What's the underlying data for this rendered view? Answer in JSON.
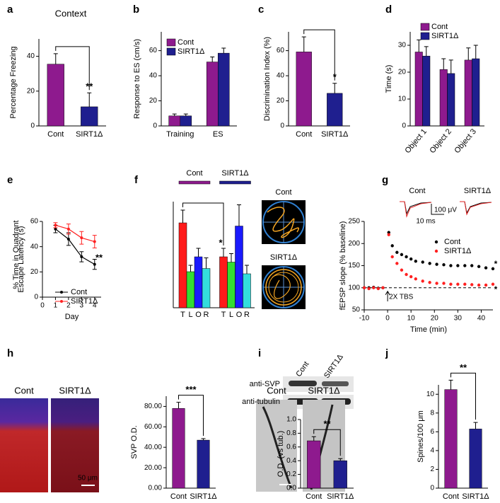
{
  "chart_data": [
    {
      "panel": "a",
      "type": "bar",
      "title": "Context",
      "ylabel": "Percentage Freezing",
      "categories": [
        "Cont",
        "SIRT1Δ"
      ],
      "values": [
        35.5,
        11
      ],
      "errors": [
        6,
        8
      ],
      "colors": [
        "#8e1a8e",
        "#1f1f8f"
      ],
      "ylim": [
        0,
        50
      ],
      "yticks": [
        0,
        20,
        40
      ],
      "significance": "**"
    },
    {
      "panel": "b",
      "type": "bar",
      "ylabel": "Response to ES (cm/s)",
      "categories": [
        "Training",
        "ES"
      ],
      "series": [
        {
          "name": "Cont",
          "color": "#8e1a8e",
          "values": [
            8,
            51
          ],
          "errors": [
            1.5,
            4
          ]
        },
        {
          "name": "SIRT1Δ",
          "color": "#1f1f8f",
          "values": [
            8,
            58
          ],
          "errors": [
            1.5,
            4
          ]
        }
      ],
      "ylim": [
        0,
        75
      ],
      "yticks": [
        0,
        20,
        40,
        60
      ],
      "legend": "top-left"
    },
    {
      "panel": "c",
      "type": "bar",
      "ylabel": "Discrimination Index (%)",
      "categories": [
        "Cont",
        "SIRT1Δ"
      ],
      "values": [
        59,
        26
      ],
      "errors": [
        12,
        8
      ],
      "colors": [
        "#8e1a8e",
        "#1f1f8f"
      ],
      "ylim": [
        0,
        75
      ],
      "yticks": [
        0,
        20,
        40,
        60
      ],
      "significance": "*"
    },
    {
      "panel": "d",
      "type": "bar",
      "ylabel": "Time (s)",
      "categories": [
        "Object 1",
        "Object 2",
        "Object 3"
      ],
      "series": [
        {
          "name": "Cont",
          "color": "#8e1a8e",
          "values": [
            27.5,
            21,
            24.5
          ],
          "errors": [
            4.5,
            4,
            4.5
          ]
        },
        {
          "name": "SIRT1Δ",
          "color": "#1f1f8f",
          "values": [
            26,
            19.5,
            25
          ],
          "errors": [
            3.5,
            5,
            5
          ]
        }
      ],
      "ylim": [
        0,
        35
      ],
      "yticks": [
        0,
        10,
        20,
        30
      ],
      "legend": "top-right"
    },
    {
      "panel": "e",
      "type": "line",
      "ylabel": "Escape Latency (s)",
      "xlabel": "Day",
      "x": [
        1,
        2,
        3,
        4
      ],
      "series": [
        {
          "name": "Cont",
          "color": "#000000",
          "values": [
            54,
            46,
            32,
            26
          ],
          "errors": [
            3,
            5,
            4,
            4
          ]
        },
        {
          "name": "SIRT1Δ",
          "color": "#ff2020",
          "values": [
            57,
            54,
            47,
            44
          ],
          "errors": [
            2,
            4,
            5,
            5
          ]
        }
      ],
      "xlim": [
        0,
        4.5
      ],
      "xticks": [
        0,
        1,
        2,
        3,
        4
      ],
      "ylim": [
        0,
        60
      ],
      "yticks": [
        0,
        20,
        40,
        60
      ],
      "legend": "bottom-right",
      "significance": "**"
    },
    {
      "panel": "f",
      "type": "quadrant",
      "ylabel": "% Time in Quadrant",
      "categories": [
        "T",
        "L",
        "O",
        "R"
      ],
      "category_colors": [
        "#ff1a1a",
        "#33dd33",
        "#1a1aff",
        "#33dddd"
      ],
      "groups": [
        {
          "name": "Cont",
          "color": "#8e1a8e",
          "values": [
            40,
            17,
            24,
            18.5
          ],
          "errors": [
            6,
            3,
            4,
            5
          ]
        },
        {
          "name": "SIRT1Δ",
          "color": "#1f1f8f",
          "values": [
            24,
            21.5,
            38.5,
            16
          ],
          "errors": [
            4,
            4,
            10,
            4
          ]
        }
      ],
      "ylim": [
        0,
        50
      ],
      "significance": "*",
      "maze_labels": [
        "Cont",
        "SIRT1Δ"
      ]
    },
    {
      "panel": "g",
      "type": "scatter",
      "ylabel": "fEPSP slope (% baseline)",
      "xlabel": "Time (min)",
      "x": [
        -10,
        -8,
        -6,
        -4,
        -2,
        0.5,
        2,
        4,
        6,
        8,
        10,
        12,
        15,
        18,
        21,
        24,
        27,
        30,
        33,
        36,
        39,
        42,
        45
      ],
      "series": [
        {
          "name": "Cont",
          "color": "#000000",
          "significance": "*",
          "values": [
            100,
            100,
            101,
            99,
            100,
            225,
            195,
            180,
            175,
            170,
            165,
            160,
            158,
            155,
            153,
            152,
            150,
            150,
            150,
            150,
            148,
            145,
            143
          ]
        },
        {
          "name": "SIRT1Δ",
          "color": "#ff2020",
          "significance": "*",
          "values": [
            100,
            98,
            100,
            98,
            100,
            220,
            170,
            155,
            140,
            130,
            125,
            120,
            115,
            112,
            110,
            110,
            108,
            108,
            108,
            107,
            106,
            106,
            108
          ]
        }
      ],
      "xlim": [
        -10,
        45
      ],
      "xticks": [
        -10,
        0,
        10,
        20,
        30,
        40
      ],
      "ylim": [
        50,
        250
      ],
      "yticks": [
        50,
        100,
        150,
        200,
        250
      ],
      "reference_line": 100,
      "arrow_label": "2X TBS",
      "legend": "top-right",
      "trace_labels": [
        "Cont",
        "SIRT1Δ"
      ],
      "scale_labels": [
        "100 μV",
        "10 ms"
      ]
    },
    {
      "panel": "h",
      "type": "bar",
      "ylabel": "SVP O.D.",
      "categories": [
        "Cont",
        "SIRT1Δ"
      ],
      "values": [
        78,
        47
      ],
      "errors": [
        6,
        1.5
      ],
      "colors": [
        "#8e1a8e",
        "#1f1f8f"
      ],
      "ylim": [
        0,
        90
      ],
      "yticks": [
        {
          "value": 0,
          "label": "0.00"
        },
        {
          "value": 20,
          "label": "20.00"
        },
        {
          "value": 40,
          "label": "40.00"
        },
        {
          "value": 60,
          "label": "60.00"
        },
        {
          "value": 80,
          "label": "80.00"
        }
      ],
      "significance": "***",
      "image_labels": [
        "Cont",
        "SIRT1Δ"
      ],
      "scale_bar": "50 μm"
    },
    {
      "panel": "i",
      "type": "bar",
      "ylabel": "O.D. (vs tub.)",
      "categories": [
        "Cont",
        "SIRT1Δ"
      ],
      "values": [
        0.69,
        0.4
      ],
      "errors": [
        0.06,
        0.03
      ],
      "colors": [
        "#8e1a8e",
        "#1f1f8f"
      ],
      "ylim": [
        0,
        1
      ],
      "yticks": [
        {
          "value": 0,
          "label": "0.0"
        },
        0.2,
        0.4,
        0.6,
        0.8,
        {
          "value": 1,
          "label": "1.0"
        }
      ],
      "significance": "**",
      "lane_labels": [
        "Cont",
        "SIRT1Δ"
      ],
      "blot_labels": [
        "anti-SVP",
        "anti-tubulin"
      ]
    },
    {
      "panel": "j",
      "type": "bar",
      "ylabel": "Spines/100 μm",
      "categories": [
        "Cont",
        "SIRT1Δ"
      ],
      "values": [
        10.5,
        6.3
      ],
      "errors": [
        1,
        0.7
      ],
      "colors": [
        "#8e1a8e",
        "#1f1f8f"
      ],
      "ylim": [
        0,
        11
      ],
      "yticks": [
        0,
        2,
        4,
        6,
        8,
        10
      ],
      "significance": "**",
      "image_labels": [
        "Cont",
        "SIRT1Δ"
      ]
    }
  ]
}
